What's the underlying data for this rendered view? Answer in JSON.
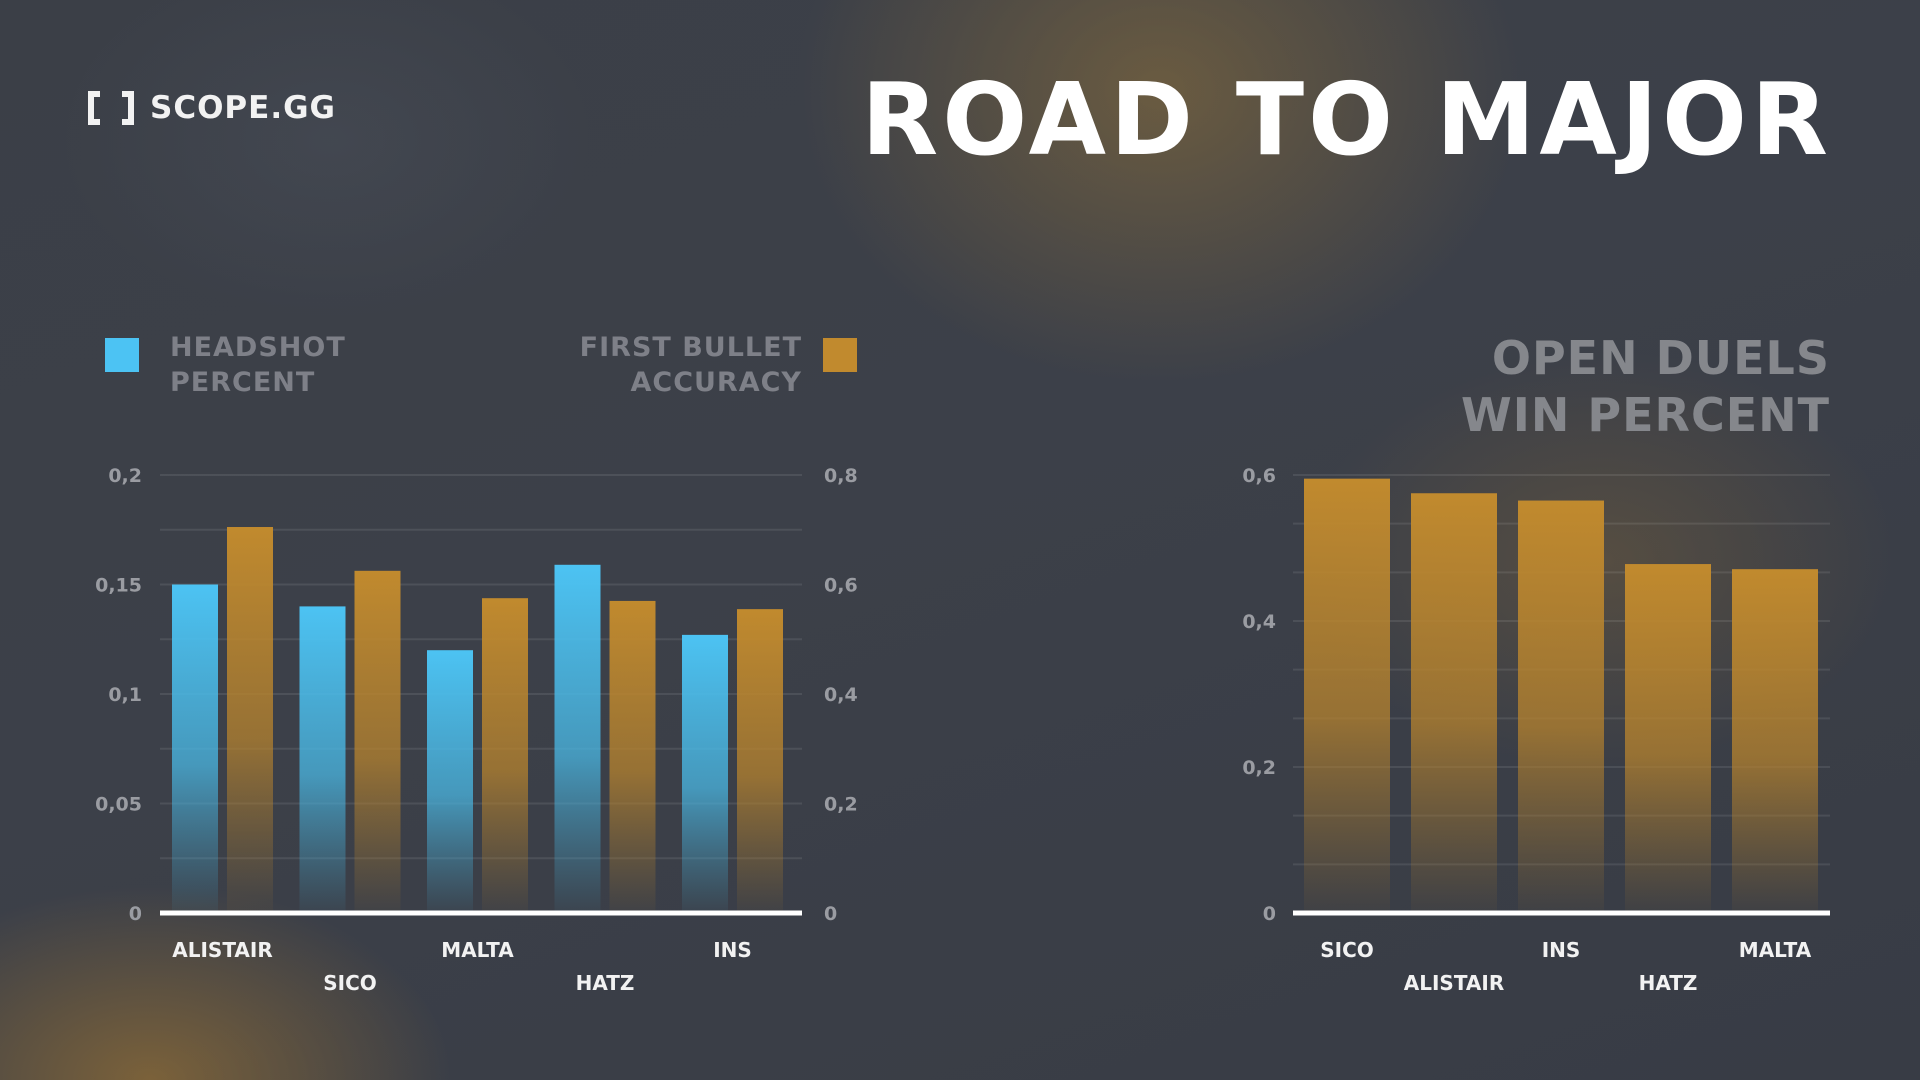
{
  "brand": {
    "name": "SCOPE.GG",
    "icon": "bracket-logo-icon"
  },
  "header": {
    "title": "ROAD TO MAJOR"
  },
  "colors": {
    "headshot": "#4cc3f3",
    "accent_orange": "#c18a2e",
    "axis": "#ffffff"
  },
  "legend": {
    "headshot": [
      "HEADSHOT",
      "PERCENT"
    ],
    "first_bullet": [
      "FIRST BULLET",
      "ACCURACY"
    ]
  },
  "chart2_heading": [
    "OPEN DUELS",
    "WIN PERCENT"
  ],
  "chart_data": [
    {
      "type": "bar",
      "categories": [
        "ALISTAIR",
        "SICO",
        "MALTA",
        "HATZ",
        "INS"
      ],
      "series": [
        {
          "name": "HEADSHOT PERCENT",
          "values": [
            0.15,
            0.14,
            0.12,
            0.159,
            0.127
          ],
          "axis": "left"
        },
        {
          "name": "FIRST BULLET ACCURACY",
          "values": [
            0.705,
            0.625,
            0.575,
            0.57,
            0.555
          ],
          "axis": "right"
        }
      ],
      "y_left": {
        "min": 0,
        "max": 0.2,
        "ticks": [
          "0",
          "0,05",
          "0,1",
          "0,15",
          "0,2"
        ]
      },
      "y_right": {
        "min": 0,
        "max": 0.8,
        "ticks": [
          "0",
          "0,2",
          "0,4",
          "0,6",
          "0,8"
        ]
      },
      "grid": true,
      "legend": "top"
    },
    {
      "type": "bar",
      "categories": [
        "SICO",
        "ALISTAIR",
        "INS",
        "HATZ",
        "MALTA"
      ],
      "series": [
        {
          "name": "OPEN DUELS WIN PERCENT",
          "values": [
            0.595,
            0.575,
            0.565,
            0.478,
            0.471
          ]
        }
      ],
      "y_left": {
        "min": 0,
        "max": 0.6,
        "ticks": [
          "0",
          "0,2",
          "0,4",
          "0,6"
        ]
      },
      "grid": true,
      "legend": "none"
    }
  ]
}
